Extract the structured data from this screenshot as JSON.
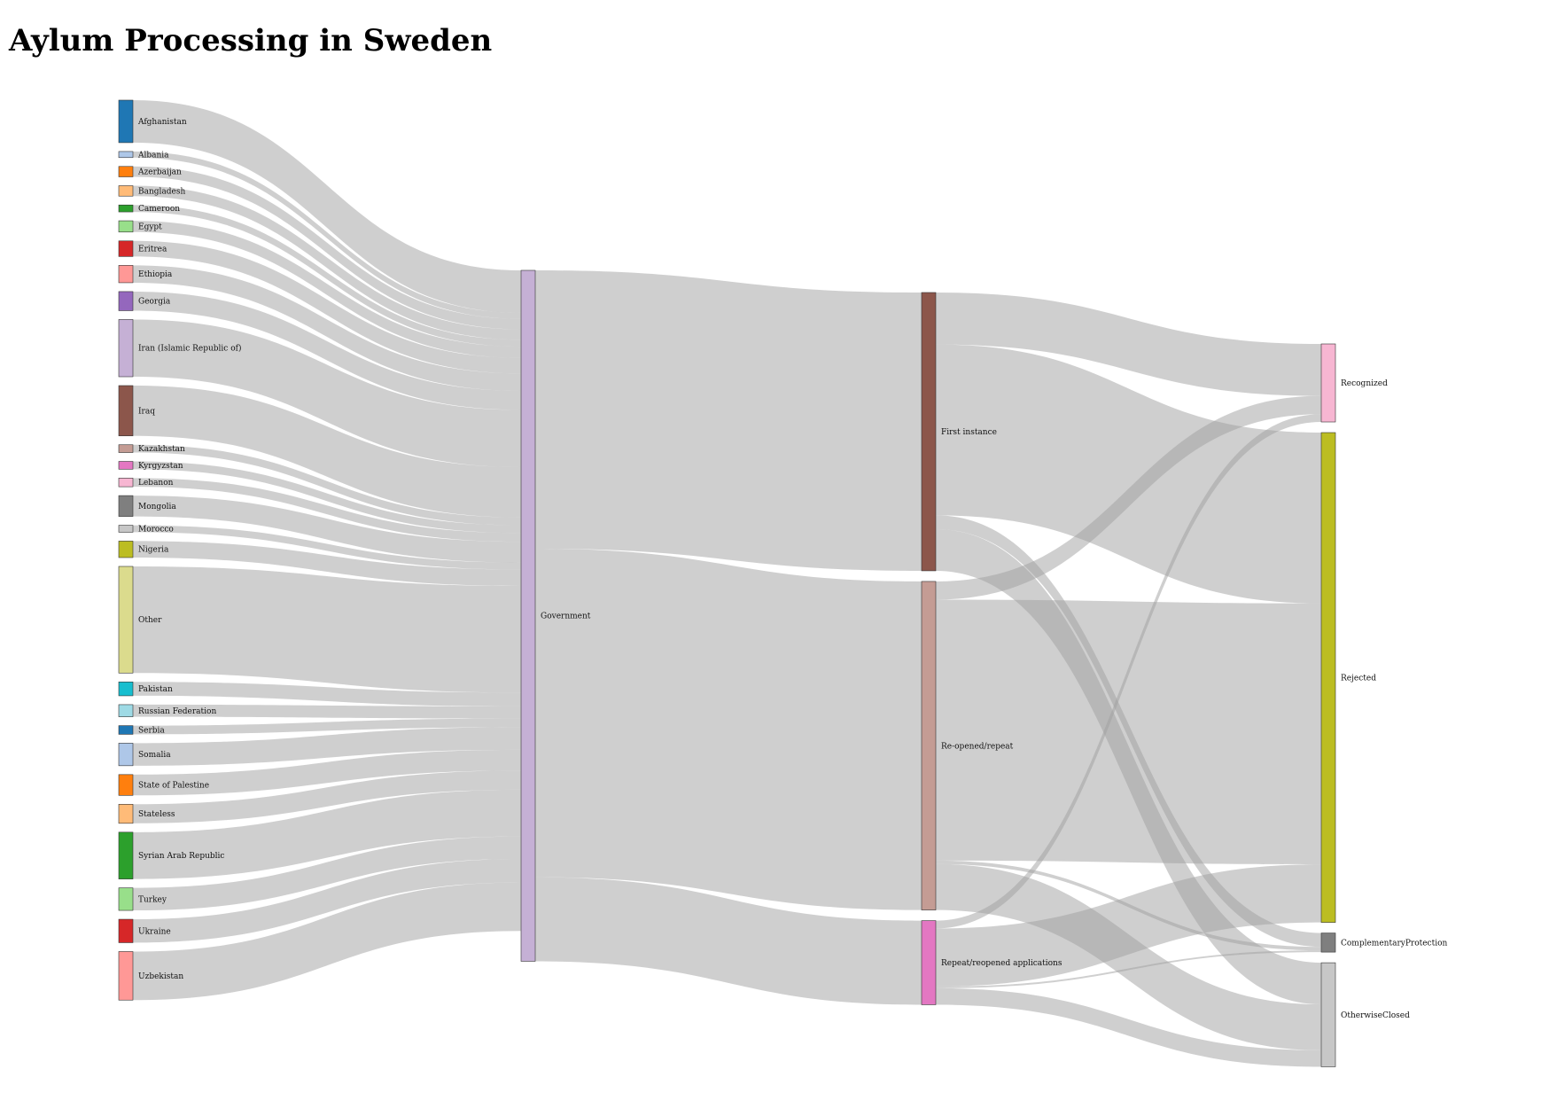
{
  "title": "Aylum Processing in Sweden",
  "diagram": {
    "type": "sankey",
    "link_color": "#a0a0a0",
    "columns": [
      {
        "nodes": [
          {
            "id": "afg",
            "label": "Afghanistan",
            "color": "#1f77b4"
          },
          {
            "id": "alb",
            "label": "Albania",
            "color": "#aec7e8"
          },
          {
            "id": "aze",
            "label": "Azerbaijan",
            "color": "#ff7f0e"
          },
          {
            "id": "ban",
            "label": "Bangladesh",
            "color": "#ffbb78"
          },
          {
            "id": "cam",
            "label": "Cameroon",
            "color": "#2ca02c"
          },
          {
            "id": "egy",
            "label": "Egypt",
            "color": "#98df8a"
          },
          {
            "id": "eri",
            "label": "Eritrea",
            "color": "#d62728"
          },
          {
            "id": "eth",
            "label": "Ethiopia",
            "color": "#ff9896"
          },
          {
            "id": "geo",
            "label": "Georgia",
            "color": "#9467bd"
          },
          {
            "id": "irn",
            "label": "Iran (Islamic Republic of)",
            "color": "#c5b0d5"
          },
          {
            "id": "irq",
            "label": "Iraq",
            "color": "#8c564b"
          },
          {
            "id": "kaz",
            "label": "Kazakhstan",
            "color": "#c49c94"
          },
          {
            "id": "kgz",
            "label": "Kyrgyzstan",
            "color": "#e377c2"
          },
          {
            "id": "leb",
            "label": "Lebanon",
            "color": "#f7b6d2"
          },
          {
            "id": "mon",
            "label": "Mongolia",
            "color": "#7f7f7f"
          },
          {
            "id": "mor",
            "label": "Morocco",
            "color": "#c7c7c7"
          },
          {
            "id": "nig",
            "label": "Nigeria",
            "color": "#bcbd22"
          },
          {
            "id": "oth",
            "label": "Other",
            "color": "#dbdb8d"
          },
          {
            "id": "pak",
            "label": "Pakistan",
            "color": "#17becf"
          },
          {
            "id": "rus",
            "label": "Russian Federation",
            "color": "#9edae5"
          },
          {
            "id": "ser",
            "label": "Serbia",
            "color": "#1f77b4"
          },
          {
            "id": "som",
            "label": "Somalia",
            "color": "#aec7e8"
          },
          {
            "id": "pse",
            "label": "State of Palestine",
            "color": "#ff7f0e"
          },
          {
            "id": "sta",
            "label": "Stateless",
            "color": "#ffbb78"
          },
          {
            "id": "syr",
            "label": "Syrian Arab Republic",
            "color": "#2ca02c"
          },
          {
            "id": "tur",
            "label": "Turkey",
            "color": "#98df8a"
          },
          {
            "id": "ukr",
            "label": "Ukraine",
            "color": "#d62728"
          },
          {
            "id": "uzb",
            "label": "Uzbekistan",
            "color": "#ff9896"
          }
        ]
      },
      {
        "nodes": [
          {
            "id": "gov",
            "label": "Government",
            "color": "#c5b0d5"
          }
        ]
      },
      {
        "nodes": [
          {
            "id": "fi",
            "label": "First instance",
            "color": "#8c564b"
          },
          {
            "id": "rr",
            "label": "Re-opened/repeat",
            "color": "#c49c94"
          },
          {
            "id": "rra",
            "label": "Repeat/reopened applications",
            "color": "#e377c2"
          }
        ]
      },
      {
        "nodes": [
          {
            "id": "rec",
            "label": "Recognized",
            "color": "#f7b6d2"
          },
          {
            "id": "rej",
            "label": "Rejected",
            "color": "#bcbd22"
          },
          {
            "id": "cp",
            "label": "ComplementaryProtection",
            "color": "#7f7f7f"
          },
          {
            "id": "oc",
            "label": "OtherwiseClosed",
            "color": "#c7c7c7"
          }
        ]
      }
    ],
    "links": [
      {
        "source": "afg",
        "target": "gov",
        "value": 49
      },
      {
        "source": "alb",
        "target": "gov",
        "value": 7
      },
      {
        "source": "aze",
        "target": "gov",
        "value": 12
      },
      {
        "source": "ban",
        "target": "gov",
        "value": 12
      },
      {
        "source": "cam",
        "target": "gov",
        "value": 8
      },
      {
        "source": "egy",
        "target": "gov",
        "value": 13
      },
      {
        "source": "eri",
        "target": "gov",
        "value": 18
      },
      {
        "source": "eth",
        "target": "gov",
        "value": 20
      },
      {
        "source": "geo",
        "target": "gov",
        "value": 22
      },
      {
        "source": "irn",
        "target": "gov",
        "value": 66
      },
      {
        "source": "irq",
        "target": "gov",
        "value": 58
      },
      {
        "source": "kaz",
        "target": "gov",
        "value": 9
      },
      {
        "source": "kgz",
        "target": "gov",
        "value": 9
      },
      {
        "source": "leb",
        "target": "gov",
        "value": 10
      },
      {
        "source": "mon",
        "target": "gov",
        "value": 24
      },
      {
        "source": "mor",
        "target": "gov",
        "value": 8
      },
      {
        "source": "nig",
        "target": "gov",
        "value": 19
      },
      {
        "source": "oth",
        "target": "gov",
        "value": 123
      },
      {
        "source": "pak",
        "target": "gov",
        "value": 16
      },
      {
        "source": "rus",
        "target": "gov",
        "value": 14
      },
      {
        "source": "ser",
        "target": "gov",
        "value": 10
      },
      {
        "source": "som",
        "target": "gov",
        "value": 26
      },
      {
        "source": "pse",
        "target": "gov",
        "value": 24
      },
      {
        "source": "sta",
        "target": "gov",
        "value": 22
      },
      {
        "source": "syr",
        "target": "gov",
        "value": 54
      },
      {
        "source": "tur",
        "target": "gov",
        "value": 26
      },
      {
        "source": "ukr",
        "target": "gov",
        "value": 27
      },
      {
        "source": "uzb",
        "target": "gov",
        "value": 56
      },
      {
        "source": "gov",
        "target": "fi",
        "value": 321
      },
      {
        "source": "gov",
        "target": "rr",
        "value": 379
      },
      {
        "source": "gov",
        "target": "rra",
        "value": 97
      },
      {
        "source": "fi",
        "target": "rec",
        "value": 60
      },
      {
        "source": "fi",
        "target": "rej",
        "value": 197
      },
      {
        "source": "fi",
        "target": "cp",
        "value": 16
      },
      {
        "source": "fi",
        "target": "oc",
        "value": 48
      },
      {
        "source": "rr",
        "target": "rec",
        "value": 21
      },
      {
        "source": "rr",
        "target": "rej",
        "value": 301
      },
      {
        "source": "rr",
        "target": "cp",
        "value": 4
      },
      {
        "source": "rr",
        "target": "oc",
        "value": 53
      },
      {
        "source": "rra",
        "target": "rec",
        "value": 9
      },
      {
        "source": "rra",
        "target": "rej",
        "value": 67
      },
      {
        "source": "rra",
        "target": "cp",
        "value": 2
      },
      {
        "source": "rra",
        "target": "oc",
        "value": 19
      }
    ]
  }
}
